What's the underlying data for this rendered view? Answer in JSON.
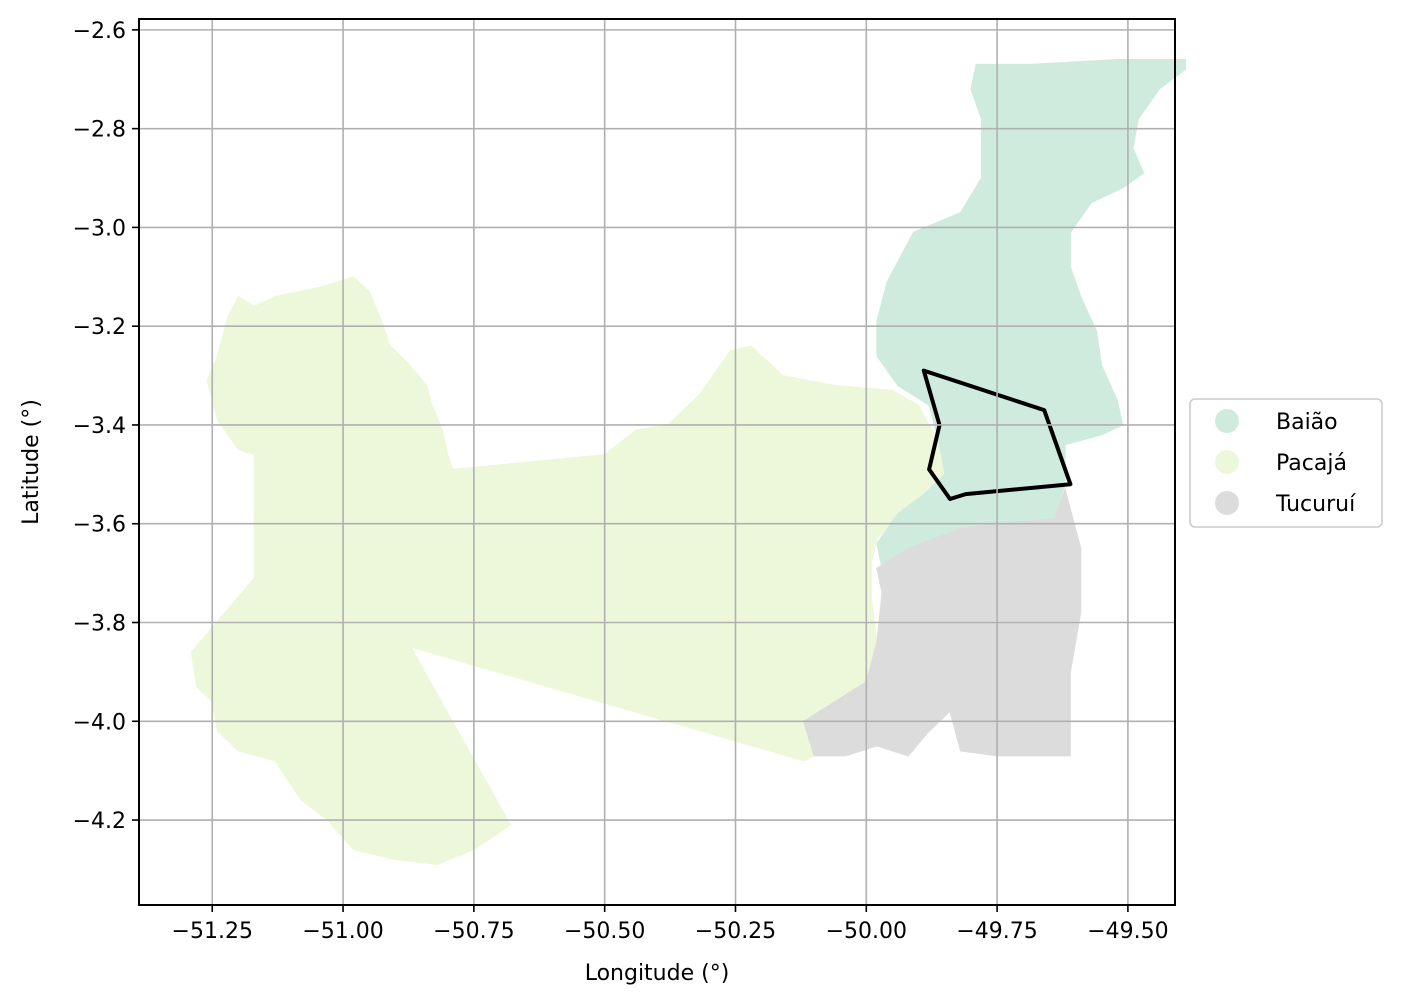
{
  "chart_data": {
    "type": "map",
    "xlabel": "Longitude (°)",
    "ylabel": "Latitude (°)",
    "xlim": [
      -51.39,
      -49.41
    ],
    "ylim": [
      -4.372,
      -2.578
    ],
    "grid": true,
    "legend_position": "right",
    "x_ticks": [
      {
        "value": -51.25,
        "label": "−51.25"
      },
      {
        "value": -51.0,
        "label": "−51.00"
      },
      {
        "value": -50.75,
        "label": "−50.75"
      },
      {
        "value": -50.5,
        "label": "−50.50"
      },
      {
        "value": -50.25,
        "label": "−50.25"
      },
      {
        "value": -50.0,
        "label": "−50.00"
      },
      {
        "value": -49.75,
        "label": "−49.75"
      },
      {
        "value": -49.5,
        "label": "−49.50"
      }
    ],
    "y_ticks": [
      {
        "value": -2.6,
        "label": "−2.6"
      },
      {
        "value": -2.8,
        "label": "−2.8"
      },
      {
        "value": -3.0,
        "label": "−3.0"
      },
      {
        "value": -3.2,
        "label": "−3.2"
      },
      {
        "value": -3.4,
        "label": "−3.4"
      },
      {
        "value": -3.6,
        "label": "−3.6"
      },
      {
        "value": -3.8,
        "label": "−3.8"
      },
      {
        "value": -4.0,
        "label": "−4.0"
      },
      {
        "value": -4.2,
        "label": "−4.2"
      }
    ],
    "regions": [
      {
        "name": "Pacajá",
        "color": "#edf8db",
        "polygon": [
          [
            -51.2,
            -3.14
          ],
          [
            -51.17,
            -3.16
          ],
          [
            -51.13,
            -3.14
          ],
          [
            -51.04,
            -3.12
          ],
          [
            -50.98,
            -3.1
          ],
          [
            -50.95,
            -3.13
          ],
          [
            -50.93,
            -3.18
          ],
          [
            -50.91,
            -3.24
          ],
          [
            -50.88,
            -3.27
          ],
          [
            -50.84,
            -3.32
          ],
          [
            -50.83,
            -3.36
          ],
          [
            -50.81,
            -3.41
          ],
          [
            -50.8,
            -3.46
          ],
          [
            -50.79,
            -3.49
          ],
          [
            -50.5,
            -3.46
          ],
          [
            -50.44,
            -3.41
          ],
          [
            -50.38,
            -3.4
          ],
          [
            -50.32,
            -3.34
          ],
          [
            -50.26,
            -3.25
          ],
          [
            -50.22,
            -3.24
          ],
          [
            -50.16,
            -3.3
          ],
          [
            -50.06,
            -3.32
          ],
          [
            -49.95,
            -3.33
          ],
          [
            -49.9,
            -3.36
          ],
          [
            -49.86,
            -3.44
          ],
          [
            -49.84,
            -3.5
          ],
          [
            -49.9,
            -3.55
          ],
          [
            -49.94,
            -3.59
          ],
          [
            -49.98,
            -3.63
          ],
          [
            -49.99,
            -3.68
          ],
          [
            -49.99,
            -3.75
          ],
          [
            -49.98,
            -3.84
          ],
          [
            -49.99,
            -3.93
          ],
          [
            -50.04,
            -3.97
          ],
          [
            -50.1,
            -3.99
          ],
          [
            -50.11,
            -4.05
          ],
          [
            -50.08,
            -4.06
          ],
          [
            -50.12,
            -4.08
          ],
          [
            -50.87,
            -3.85
          ],
          [
            -50.68,
            -4.21
          ],
          [
            -50.75,
            -4.26
          ],
          [
            -50.82,
            -4.29
          ],
          [
            -50.9,
            -4.28
          ],
          [
            -50.98,
            -4.26
          ],
          [
            -51.03,
            -4.2
          ],
          [
            -51.08,
            -4.16
          ],
          [
            -51.13,
            -4.08
          ],
          [
            -51.2,
            -4.06
          ],
          [
            -51.24,
            -4.02
          ],
          [
            -51.25,
            -3.96
          ],
          [
            -51.28,
            -3.93
          ],
          [
            -51.29,
            -3.86
          ],
          [
            -51.17,
            -3.71
          ],
          [
            -51.17,
            -3.46
          ],
          [
            -51.2,
            -3.45
          ],
          [
            -51.24,
            -3.39
          ],
          [
            -51.26,
            -3.31
          ],
          [
            -51.24,
            -3.26
          ],
          [
            -51.22,
            -3.18
          ]
        ]
      },
      {
        "name": "Baião",
        "color": "#cfebdd",
        "polygon": [
          [
            -49.79,
            -2.67
          ],
          [
            -49.69,
            -2.67
          ],
          [
            -49.52,
            -2.66
          ],
          [
            -49.39,
            -2.66
          ],
          [
            -49.39,
            -2.68
          ],
          [
            -49.44,
            -2.72
          ],
          [
            -49.48,
            -2.78
          ],
          [
            -49.49,
            -2.84
          ],
          [
            -49.47,
            -2.89
          ],
          [
            -49.51,
            -2.92
          ],
          [
            -49.57,
            -2.95
          ],
          [
            -49.61,
            -3.01
          ],
          [
            -49.61,
            -3.08
          ],
          [
            -49.59,
            -3.14
          ],
          [
            -49.56,
            -3.21
          ],
          [
            -49.55,
            -3.28
          ],
          [
            -49.52,
            -3.35
          ],
          [
            -49.51,
            -3.4
          ],
          [
            -49.55,
            -3.42
          ],
          [
            -49.62,
            -3.44
          ],
          [
            -49.62,
            -3.52
          ],
          [
            -49.64,
            -3.59
          ],
          [
            -49.75,
            -3.6
          ],
          [
            -49.82,
            -3.61
          ],
          [
            -49.92,
            -3.65
          ],
          [
            -49.97,
            -3.69
          ],
          [
            -49.98,
            -3.64
          ],
          [
            -49.94,
            -3.58
          ],
          [
            -49.89,
            -3.54
          ],
          [
            -49.85,
            -3.5
          ],
          [
            -49.86,
            -3.44
          ],
          [
            -49.88,
            -3.36
          ],
          [
            -49.94,
            -3.32
          ],
          [
            -49.98,
            -3.26
          ],
          [
            -49.98,
            -3.19
          ],
          [
            -49.96,
            -3.11
          ],
          [
            -49.91,
            -3.01
          ],
          [
            -49.82,
            -2.97
          ],
          [
            -49.78,
            -2.9
          ],
          [
            -49.78,
            -2.78
          ],
          [
            -49.8,
            -2.72
          ]
        ]
      },
      {
        "name": "Tucuruí",
        "color": "#dcdcdc",
        "polygon": [
          [
            -49.64,
            -3.59
          ],
          [
            -49.62,
            -3.53
          ],
          [
            -49.59,
            -3.65
          ],
          [
            -49.59,
            -3.78
          ],
          [
            -49.61,
            -3.9
          ],
          [
            -49.61,
            -4.0
          ],
          [
            -49.61,
            -4.07
          ],
          [
            -49.64,
            -4.07
          ],
          [
            -49.75,
            -4.07
          ],
          [
            -49.82,
            -4.06
          ],
          [
            -49.84,
            -3.98
          ],
          [
            -49.88,
            -4.02
          ],
          [
            -49.92,
            -4.07
          ],
          [
            -49.98,
            -4.05
          ],
          [
            -50.04,
            -4.07
          ],
          [
            -50.1,
            -4.07
          ],
          [
            -50.12,
            -4.0
          ],
          [
            -50.06,
            -3.96
          ],
          [
            -50.0,
            -3.92
          ],
          [
            -49.98,
            -3.84
          ],
          [
            -49.97,
            -3.74
          ],
          [
            -49.98,
            -3.69
          ],
          [
            -49.92,
            -3.65
          ],
          [
            -49.82,
            -3.61
          ],
          [
            -49.75,
            -3.6
          ]
        ]
      }
    ],
    "outline": {
      "color": "#000000",
      "polygon": [
        [
          -49.89,
          -3.29
        ],
        [
          -49.66,
          -3.37
        ],
        [
          -49.61,
          -3.52
        ],
        [
          -49.81,
          -3.54
        ],
        [
          -49.84,
          -3.55
        ],
        [
          -49.88,
          -3.49
        ],
        [
          -49.86,
          -3.4
        ]
      ]
    },
    "legend": [
      {
        "label": "Baião",
        "color": "#cfebdd"
      },
      {
        "label": "Pacajá",
        "color": "#edf8db"
      },
      {
        "label": "Tucuruí",
        "color": "#dcdcdc"
      }
    ]
  }
}
